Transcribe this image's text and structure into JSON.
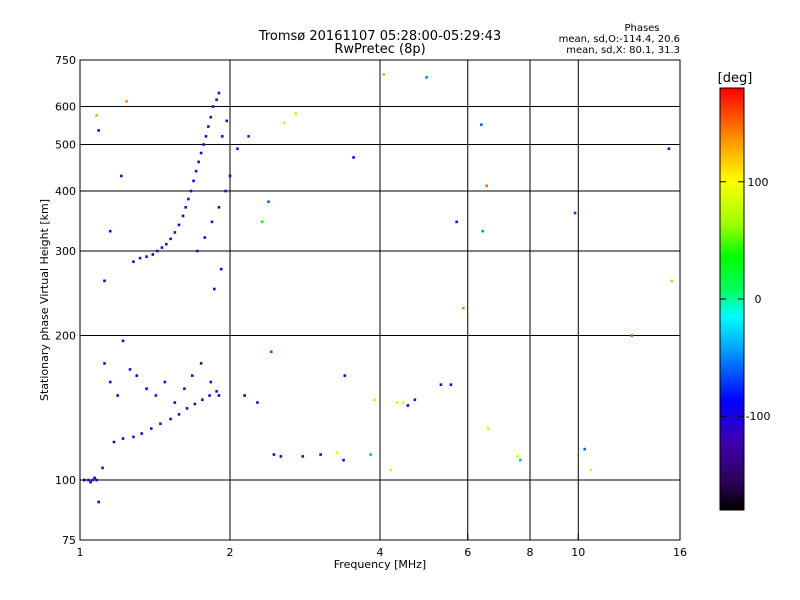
{
  "chart_data": {
    "type": "scatter",
    "title": "Tromsø 20161107 05:28:00-05:29:43",
    "subtitle": "RwPretec (8p)",
    "xlabel": "Frequency [MHz]",
    "ylabel": "Stationary phase Virtual Height [km]",
    "xscale": "log",
    "yscale": "log",
    "xlim": [
      1,
      16
    ],
    "ylim": [
      75,
      750
    ],
    "x_ticks": [
      1,
      2,
      4,
      6,
      8,
      10,
      16
    ],
    "x_tick_labels": [
      "1",
      "2",
      "4",
      "6",
      "8",
      "10",
      "16"
    ],
    "y_ticks": [
      75,
      100,
      200,
      300,
      400,
      500,
      600,
      750
    ],
    "y_tick_labels": [
      "75",
      "100",
      "200",
      "300",
      "400",
      "500",
      "600",
      "750"
    ],
    "grid_x": [
      2,
      4,
      6,
      8,
      10
    ],
    "grid_y": [
      100,
      200,
      300,
      400,
      500,
      600
    ],
    "stats": {
      "heading": "Phases",
      "line1": "mean, sd,O:-114.4, 20.6",
      "line2": "mean, sd,X:  80.1, 31.3"
    },
    "colorbar": {
      "label": "[deg]",
      "min": -180,
      "max": 180,
      "ticks": [
        100,
        0,
        -100
      ],
      "tick_labels": [
        "100",
        "0",
        "-100"
      ]
    },
    "points": [
      [
        1.02,
        100,
        -110
      ],
      [
        1.04,
        100,
        -110
      ],
      [
        1.05,
        99,
        -100
      ],
      [
        1.06,
        100,
        -110
      ],
      [
        1.07,
        101,
        -90
      ],
      [
        1.08,
        100,
        -110
      ],
      [
        1.09,
        90,
        -110
      ],
      [
        1.11,
        106,
        -120
      ],
      [
        1.12,
        175,
        -110
      ],
      [
        1.15,
        160,
        -120
      ],
      [
        1.19,
        150,
        -100
      ],
      [
        1.22,
        195,
        -110
      ],
      [
        1.26,
        170,
        -120
      ],
      [
        1.3,
        165,
        -90
      ],
      [
        1.36,
        155,
        -110
      ],
      [
        1.42,
        150,
        -120
      ],
      [
        1.48,
        160,
        -110
      ],
      [
        1.55,
        145,
        -100
      ],
      [
        1.62,
        155,
        -120
      ],
      [
        1.68,
        165,
        -110
      ],
      [
        1.75,
        175,
        -130
      ],
      [
        1.83,
        160,
        -110
      ],
      [
        1.9,
        150,
        -100
      ],
      [
        1.17,
        120,
        -110
      ],
      [
        1.22,
        122,
        -120
      ],
      [
        1.28,
        123,
        -110
      ],
      [
        1.33,
        125,
        -100
      ],
      [
        1.39,
        128,
        -110
      ],
      [
        1.45,
        131,
        -120
      ],
      [
        1.52,
        134,
        -110
      ],
      [
        1.58,
        137,
        -100
      ],
      [
        1.64,
        141,
        -110
      ],
      [
        1.7,
        144,
        -120
      ],
      [
        1.76,
        147,
        -110
      ],
      [
        1.82,
        150,
        -100
      ],
      [
        1.88,
        153,
        -110
      ],
      [
        1.28,
        285,
        -110
      ],
      [
        1.32,
        290,
        -120
      ],
      [
        1.36,
        292,
        -110
      ],
      [
        1.4,
        295,
        -100
      ],
      [
        1.43,
        300,
        -120
      ],
      [
        1.46,
        305,
        -110
      ],
      [
        1.49,
        310,
        -130
      ],
      [
        1.52,
        318,
        -110
      ],
      [
        1.55,
        328,
        -120
      ],
      [
        1.58,
        340,
        -110
      ],
      [
        1.61,
        355,
        -100
      ],
      [
        1.63,
        370,
        -110
      ],
      [
        1.65,
        385,
        -120
      ],
      [
        1.67,
        400,
        -110
      ],
      [
        1.69,
        420,
        -100
      ],
      [
        1.71,
        440,
        -110
      ],
      [
        1.73,
        460,
        -120
      ],
      [
        1.75,
        480,
        -110
      ],
      [
        1.77,
        500,
        -100
      ],
      [
        1.79,
        520,
        -110
      ],
      [
        1.81,
        545,
        -120
      ],
      [
        1.83,
        570,
        -110
      ],
      [
        1.85,
        600,
        -100
      ],
      [
        1.88,
        620,
        -110
      ],
      [
        1.9,
        640,
        -120
      ],
      [
        1.72,
        300,
        -110
      ],
      [
        1.78,
        320,
        -100
      ],
      [
        1.84,
        345,
        -110
      ],
      [
        1.9,
        370,
        -120
      ],
      [
        1.96,
        400,
        -110
      ],
      [
        2.0,
        430,
        -100
      ],
      [
        1.93,
        520,
        -110
      ],
      [
        1.97,
        560,
        -120
      ],
      [
        1.86,
        250,
        -110
      ],
      [
        1.92,
        275,
        -100
      ],
      [
        2.07,
        490,
        -80
      ],
      [
        2.18,
        520,
        -70
      ],
      [
        2.39,
        380,
        -60
      ],
      [
        2.32,
        345,
        40
      ],
      [
        2.71,
        580,
        70
      ],
      [
        2.57,
        555,
        80
      ],
      [
        1.08,
        575,
        130
      ],
      [
        1.09,
        535,
        -100
      ],
      [
        1.12,
        260,
        -110
      ],
      [
        1.15,
        330,
        -100
      ],
      [
        1.21,
        430,
        -110
      ],
      [
        1.24,
        615,
        140
      ],
      [
        2.14,
        150,
        -90
      ],
      [
        2.27,
        145,
        -80
      ],
      [
        2.42,
        185,
        -60
      ],
      [
        2.45,
        113,
        -110
      ],
      [
        2.53,
        112,
        -100
      ],
      [
        2.8,
        112,
        -120
      ],
      [
        3.04,
        113,
        -110
      ],
      [
        3.28,
        114,
        80
      ],
      [
        3.38,
        110,
        -110
      ],
      [
        3.4,
        165,
        -100
      ],
      [
        3.54,
        470,
        -90
      ],
      [
        3.83,
        113,
        -40
      ],
      [
        3.9,
        147,
        110
      ],
      [
        4.07,
        700,
        130
      ],
      [
        4.2,
        105,
        110
      ],
      [
        4.33,
        145,
        90
      ],
      [
        4.45,
        145,
        110
      ],
      [
        4.55,
        143,
        -100
      ],
      [
        4.7,
        147,
        -110
      ],
      [
        4.96,
        690,
        -50
      ],
      [
        5.3,
        158,
        -110
      ],
      [
        5.55,
        158,
        -100
      ],
      [
        5.7,
        345,
        -100
      ],
      [
        5.88,
        228,
        140
      ],
      [
        6.39,
        550,
        -60
      ],
      [
        6.43,
        330,
        -50
      ],
      [
        6.55,
        410,
        150
      ],
      [
        6.6,
        128,
        80
      ],
      [
        7.55,
        112,
        80
      ],
      [
        7.65,
        110,
        -40
      ],
      [
        10.3,
        116,
        -60
      ],
      [
        10.6,
        105,
        110
      ],
      [
        12.8,
        200,
        160
      ],
      [
        9.85,
        360,
        -70
      ],
      [
        15.2,
        490,
        -110
      ],
      [
        15.4,
        260,
        60
      ]
    ]
  }
}
